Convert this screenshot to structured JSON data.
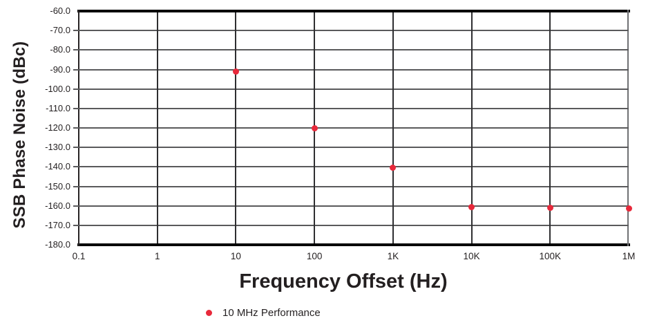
{
  "chart_data": {
    "type": "scatter",
    "title": "",
    "xlabel": "Frequency Offset (Hz)",
    "ylabel": "SSB Phase Noise (dBc)",
    "x_scale": "log",
    "xlim_log10": [
      -1,
      6
    ],
    "ylim": [
      -180,
      -60
    ],
    "grid": true,
    "x_ticks": [
      {
        "label": "0.1",
        "value": 0.1
      },
      {
        "label": "1",
        "value": 1
      },
      {
        "label": "10",
        "value": 10
      },
      {
        "label": "100",
        "value": 100
      },
      {
        "label": "1K",
        "value": 1000
      },
      {
        "label": "10K",
        "value": 10000
      },
      {
        "label": "100K",
        "value": 100000
      },
      {
        "label": "1M",
        "value": 1000000
      }
    ],
    "y_ticks": [
      {
        "label": "-60.0",
        "value": -60
      },
      {
        "label": "-70.0",
        "value": -70
      },
      {
        "label": "-80.0",
        "value": -80
      },
      {
        "label": "-90.0",
        "value": -90
      },
      {
        "label": "-100.0",
        "value": -100
      },
      {
        "label": "-110.0",
        "value": -110
      },
      {
        "label": "-120.0",
        "value": -120
      },
      {
        "label": "-130.0",
        "value": -130
      },
      {
        "label": "-140.0",
        "value": -140
      },
      {
        "label": "-150.0",
        "value": -150
      },
      {
        "label": "-160.0",
        "value": -160
      },
      {
        "label": "-170.0",
        "value": -170
      },
      {
        "label": "-180.0",
        "value": -180
      }
    ],
    "legend": [
      {
        "label": "10 MHz Performance",
        "marker": "dot",
        "color": "#e8293b"
      }
    ],
    "series": [
      {
        "name": "10 MHz Performance",
        "color": "#e8293b",
        "points": [
          {
            "x": 10,
            "y": -91.0
          },
          {
            "x": 100,
            "y": -120.0
          },
          {
            "x": 1000,
            "y": -140.5
          },
          {
            "x": 10000,
            "y": -160.5
          },
          {
            "x": 100000,
            "y": -161.0
          },
          {
            "x": 1000000,
            "y": -161.5
          }
        ]
      }
    ],
    "colors": {
      "marker": "#e8293b",
      "text": "#231f20",
      "h_gridline": "#59595b",
      "v_gridline": "#2e2e30",
      "axis_border": "#000000"
    }
  }
}
